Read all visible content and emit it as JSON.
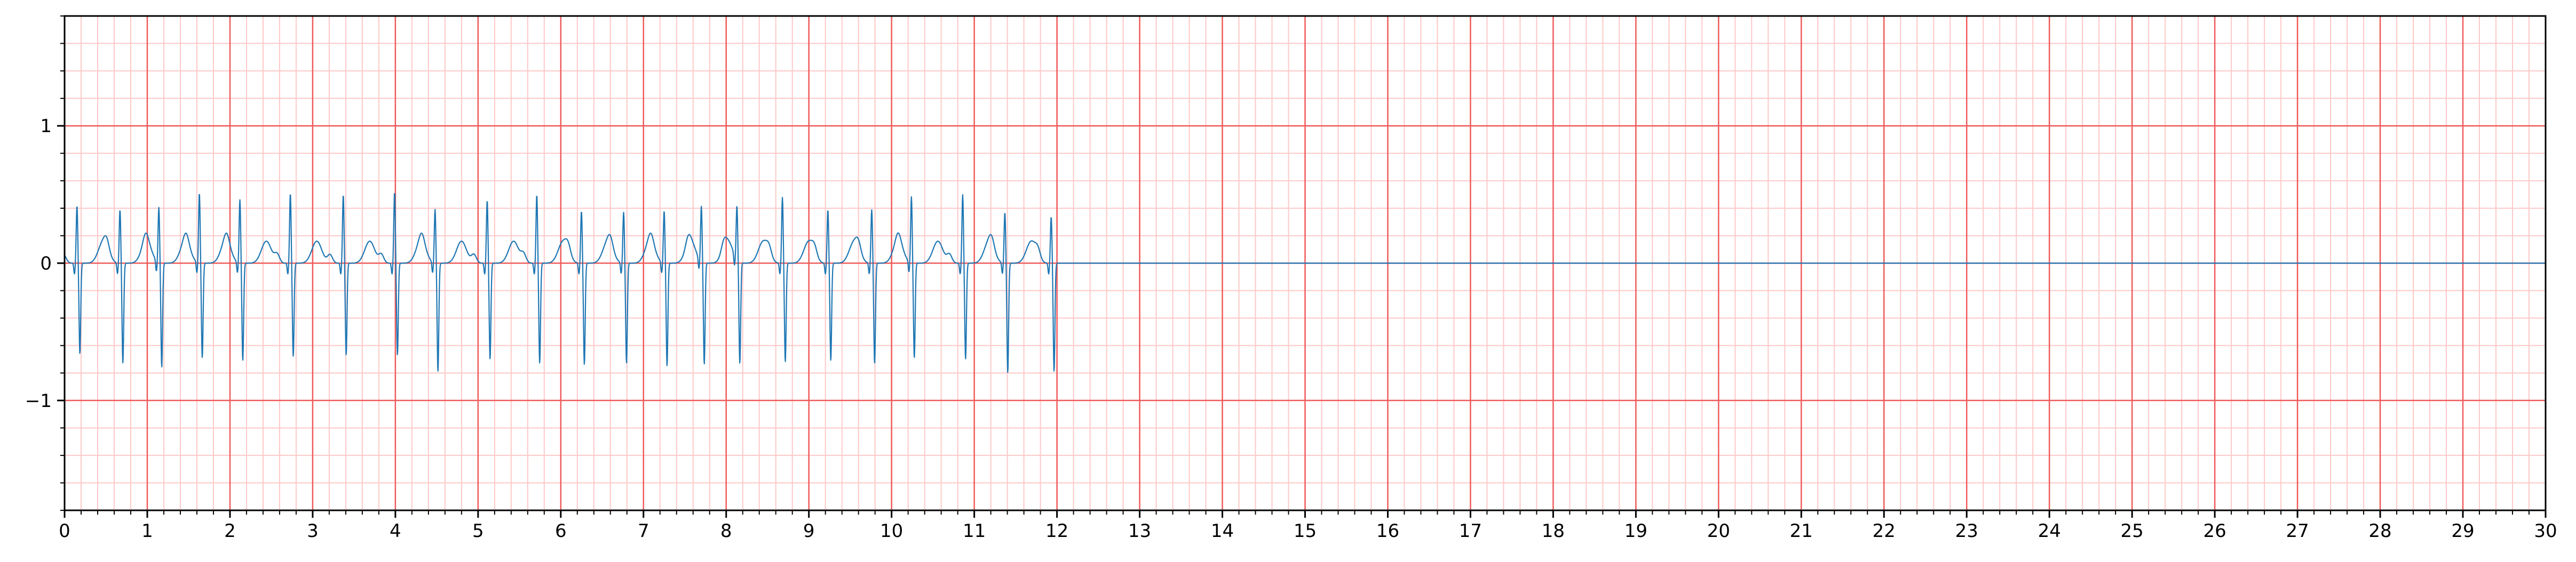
{
  "chart_data": {
    "type": "line",
    "title": "",
    "xlabel": "",
    "ylabel": "",
    "xlim": [
      0,
      30
    ],
    "ylim": [
      -1.8,
      1.8
    ],
    "x_ticks": [
      "0",
      "1",
      "2",
      "3",
      "4",
      "5",
      "6",
      "7",
      "8",
      "9",
      "10",
      "11",
      "12",
      "13",
      "14",
      "15",
      "16",
      "17",
      "18",
      "19",
      "20",
      "21",
      "22",
      "23",
      "24",
      "25",
      "26",
      "27",
      "28",
      "29",
      "30"
    ],
    "y_ticks": [
      {
        "value": -1,
        "label": "−1"
      },
      {
        "value": 0,
        "label": "0"
      },
      {
        "value": 1,
        "label": "1"
      }
    ],
    "grid": {
      "major": {
        "x_step": 1,
        "y_step": 1,
        "color": "#f05a5a"
      },
      "minor": {
        "x_step": 0.2,
        "y_step": 0.2,
        "color": "#ffc8c8"
      }
    },
    "series": [
      {
        "color": "#1f77b4",
        "signal_end": 12.0,
        "baseline": 0,
        "beats": [
          {
            "t": 0.15,
            "r": 0.42,
            "s": -0.66
          },
          {
            "t": 0.67,
            "r": 0.39,
            "s": -0.73
          },
          {
            "t": 1.14,
            "r": 0.4,
            "s": -0.76
          },
          {
            "t": 1.63,
            "r": 0.51,
            "s": -0.69
          },
          {
            "t": 2.12,
            "r": 0.46,
            "s": -0.71
          },
          {
            "t": 2.73,
            "r": 0.51,
            "s": -0.68
          },
          {
            "t": 3.37,
            "r": 0.5,
            "s": -0.67
          },
          {
            "t": 3.99,
            "r": 0.52,
            "s": -0.67
          },
          {
            "t": 4.48,
            "r": 0.39,
            "s": -0.79
          },
          {
            "t": 5.11,
            "r": 0.46,
            "s": -0.7
          },
          {
            "t": 5.71,
            "r": 0.5,
            "s": -0.73
          },
          {
            "t": 6.25,
            "r": 0.38,
            "s": -0.74
          },
          {
            "t": 6.76,
            "r": 0.37,
            "s": -0.73
          },
          {
            "t": 7.25,
            "r": 0.38,
            "s": -0.75
          },
          {
            "t": 7.7,
            "r": 0.4,
            "s": -0.74
          },
          {
            "t": 8.13,
            "r": 0.39,
            "s": -0.74
          },
          {
            "t": 8.68,
            "r": 0.48,
            "s": -0.72
          },
          {
            "t": 9.23,
            "r": 0.39,
            "s": -0.71
          },
          {
            "t": 9.76,
            "r": 0.39,
            "s": -0.73
          },
          {
            "t": 10.24,
            "r": 0.48,
            "s": -0.69
          },
          {
            "t": 10.86,
            "r": 0.5,
            "s": -0.7
          },
          {
            "t": 11.37,
            "r": 0.37,
            "s": -0.8
          },
          {
            "t": 11.93,
            "r": 0.34,
            "s": -0.79
          }
        ]
      }
    ]
  }
}
